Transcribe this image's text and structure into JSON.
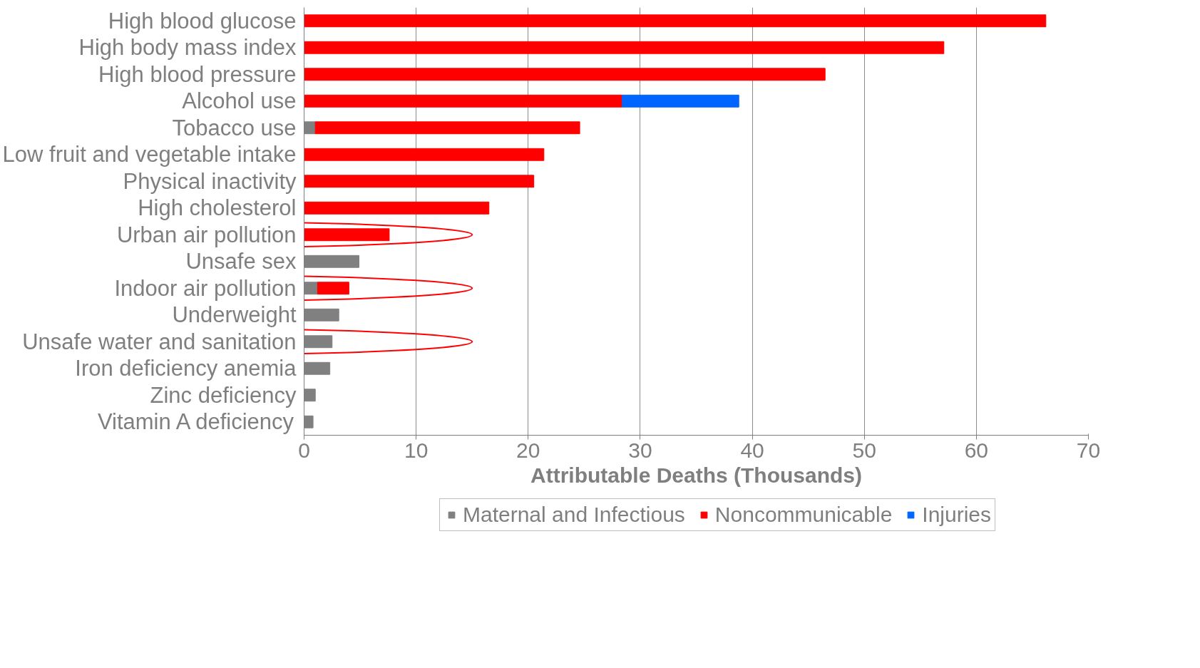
{
  "chart_data": {
    "type": "bar",
    "orientation": "horizontal",
    "stacked": true,
    "categories": [
      "High blood glucose",
      "High body mass index",
      "High blood pressure",
      "Alcohol use",
      "Tobacco use",
      "Low fruit and vegetable intake",
      "Physical inactivity",
      "High cholesterol",
      "Urban air pollution",
      "Unsafe sex",
      "Indoor air pollution",
      "Underweight",
      "Unsafe water and sanitation",
      "Iron deficiency anemia",
      "Zinc deficiency",
      "Vitamin A deficiency"
    ],
    "series": [
      {
        "name": "Maternal and Infectious",
        "color": "#808080",
        "values": [
          0,
          0,
          0,
          0,
          1.0,
          0,
          0,
          0,
          0,
          4.9,
          1.2,
          3.1,
          2.5,
          2.3,
          1.0,
          0.8
        ]
      },
      {
        "name": "Noncommunicable",
        "color": "#ff0000",
        "values": [
          66.2,
          57.1,
          46.5,
          28.4,
          23.6,
          21.4,
          20.5,
          16.5,
          7.6,
          0,
          2.8,
          0,
          0,
          0,
          0,
          0
        ]
      },
      {
        "name": "Injuries",
        "color": "#0066ff",
        "values": [
          0,
          0,
          0,
          10.4,
          0,
          0,
          0,
          0,
          0,
          0,
          0,
          0,
          0,
          0,
          0,
          0
        ]
      }
    ],
    "xlabel": "Attributable Deaths (Thousands)",
    "xlim": [
      0,
      70
    ],
    "xticks": [
      0,
      10,
      20,
      30,
      40,
      50,
      60,
      70
    ],
    "grid": "x",
    "legend": "bottom"
  }
}
